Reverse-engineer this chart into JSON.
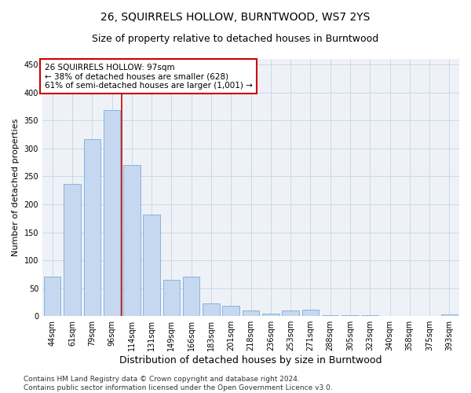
{
  "title": "26, SQUIRRELS HOLLOW, BURNTWOOD, WS7 2YS",
  "subtitle": "Size of property relative to detached houses in Burntwood",
  "xlabel": "Distribution of detached houses by size in Burntwood",
  "ylabel": "Number of detached properties",
  "categories": [
    "44sqm",
    "61sqm",
    "79sqm",
    "96sqm",
    "114sqm",
    "131sqm",
    "149sqm",
    "166sqm",
    "183sqm",
    "201sqm",
    "218sqm",
    "236sqm",
    "253sqm",
    "271sqm",
    "288sqm",
    "305sqm",
    "323sqm",
    "340sqm",
    "358sqm",
    "375sqm",
    "393sqm"
  ],
  "values": [
    70,
    236,
    317,
    368,
    270,
    182,
    65,
    70,
    23,
    19,
    10,
    5,
    10,
    12,
    1,
    1,
    1,
    0,
    0,
    0,
    3
  ],
  "bar_color": "#c5d8f0",
  "bar_edge_color": "#7aabdb",
  "marker_line_color": "#cc0000",
  "annotation_box_color": "#cc0000",
  "annotation_text": "26 SQUIRRELS HOLLOW: 97sqm\n← 38% of detached houses are smaller (628)\n61% of semi-detached houses are larger (1,001) →",
  "ylim": [
    0,
    460
  ],
  "yticks": [
    0,
    50,
    100,
    150,
    200,
    250,
    300,
    350,
    400,
    450
  ],
  "grid_color": "#c8d8e8",
  "background_color": "#eef2f7",
  "footer_text": "Contains HM Land Registry data © Crown copyright and database right 2024.\nContains public sector information licensed under the Open Government Licence v3.0.",
  "title_fontsize": 10,
  "subtitle_fontsize": 9,
  "xlabel_fontsize": 9,
  "ylabel_fontsize": 8,
  "tick_fontsize": 7,
  "annotation_fontsize": 7.5,
  "footer_fontsize": 6.5
}
